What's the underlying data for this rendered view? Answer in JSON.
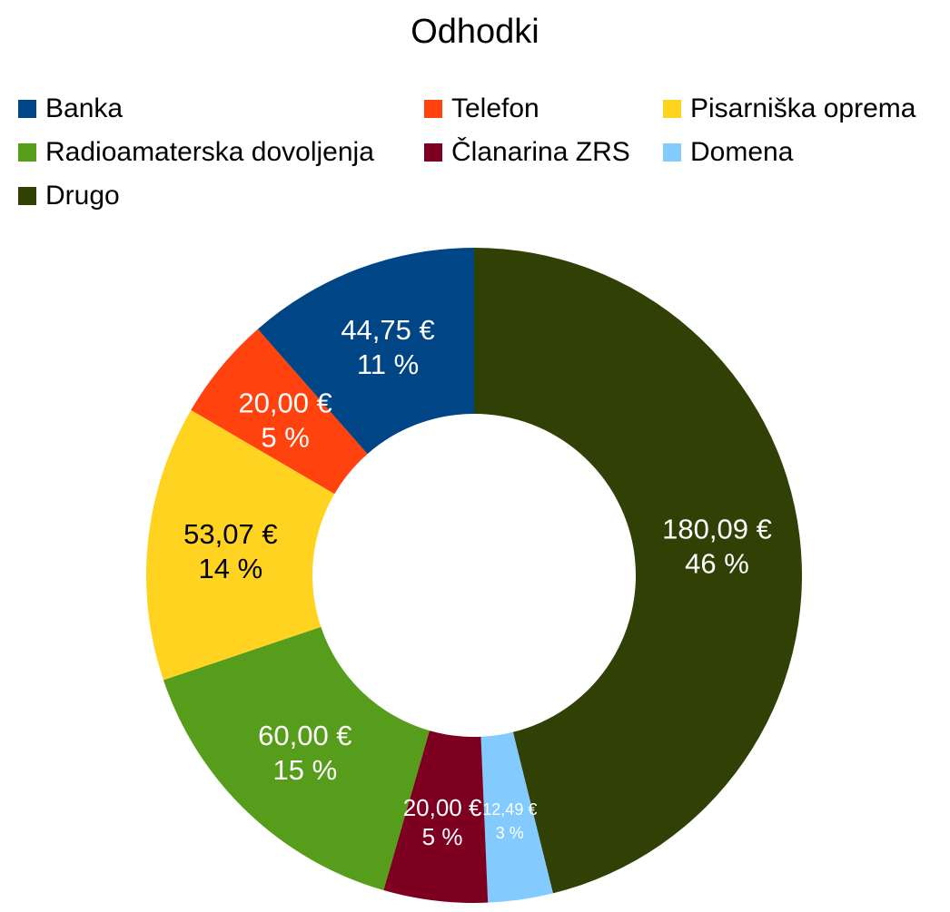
{
  "chart_data": {
    "type": "pie",
    "variant": "donut",
    "title": "Odhodki",
    "legend_position": "top",
    "slices": [
      {
        "name": "Drugo",
        "value": 180.09,
        "value_label": "180,09 €",
        "percent_label": "46 %",
        "color": "#314004",
        "label_color": "#ffffff",
        "label_size": "large"
      },
      {
        "name": "Domena",
        "value": 12.49,
        "value_label": "12,49 €",
        "percent_label": "3 %",
        "color": "#83caff",
        "label_color": "#ffffff",
        "label_size": "small"
      },
      {
        "name": "Članarina ZRS",
        "value": 20.0,
        "value_label": "20,00 €",
        "percent_label": "5 %",
        "color": "#7e0021",
        "label_color": "#ffffff",
        "label_size": "medium"
      },
      {
        "name": "Radioamaterska dovoljenja",
        "value": 60.0,
        "value_label": "60,00 €",
        "percent_label": "15 %",
        "color": "#579d1c",
        "label_color": "#ffffff",
        "label_size": "large"
      },
      {
        "name": "Pisarniška oprema",
        "value": 53.07,
        "value_label": "53,07 €",
        "percent_label": "14 %",
        "color": "#ffd320",
        "label_color": "#000000",
        "label_size": "large"
      },
      {
        "name": "Telefon",
        "value": 20.0,
        "value_label": "20,00 €",
        "percent_label": "5 %",
        "color": "#ff420e",
        "label_color": "#ffffff",
        "label_size": "large"
      },
      {
        "name": "Banka",
        "value": 44.75,
        "value_label": "44,75 €",
        "percent_label": "11 %",
        "color": "#004586",
        "label_color": "#ffffff",
        "label_size": "large"
      }
    ],
    "legend": [
      {
        "name": "Banka",
        "color": "#004586"
      },
      {
        "name": "Telefon",
        "color": "#ff420e"
      },
      {
        "name": "Pisarniška oprema",
        "color": "#ffd320"
      },
      {
        "name": "Radioamaterska dovoljenja",
        "color": "#579d1c"
      },
      {
        "name": "Članarina ZRS",
        "color": "#7e0021"
      },
      {
        "name": "Domena",
        "color": "#83caff"
      },
      {
        "name": "Drugo",
        "color": "#314004"
      }
    ]
  }
}
